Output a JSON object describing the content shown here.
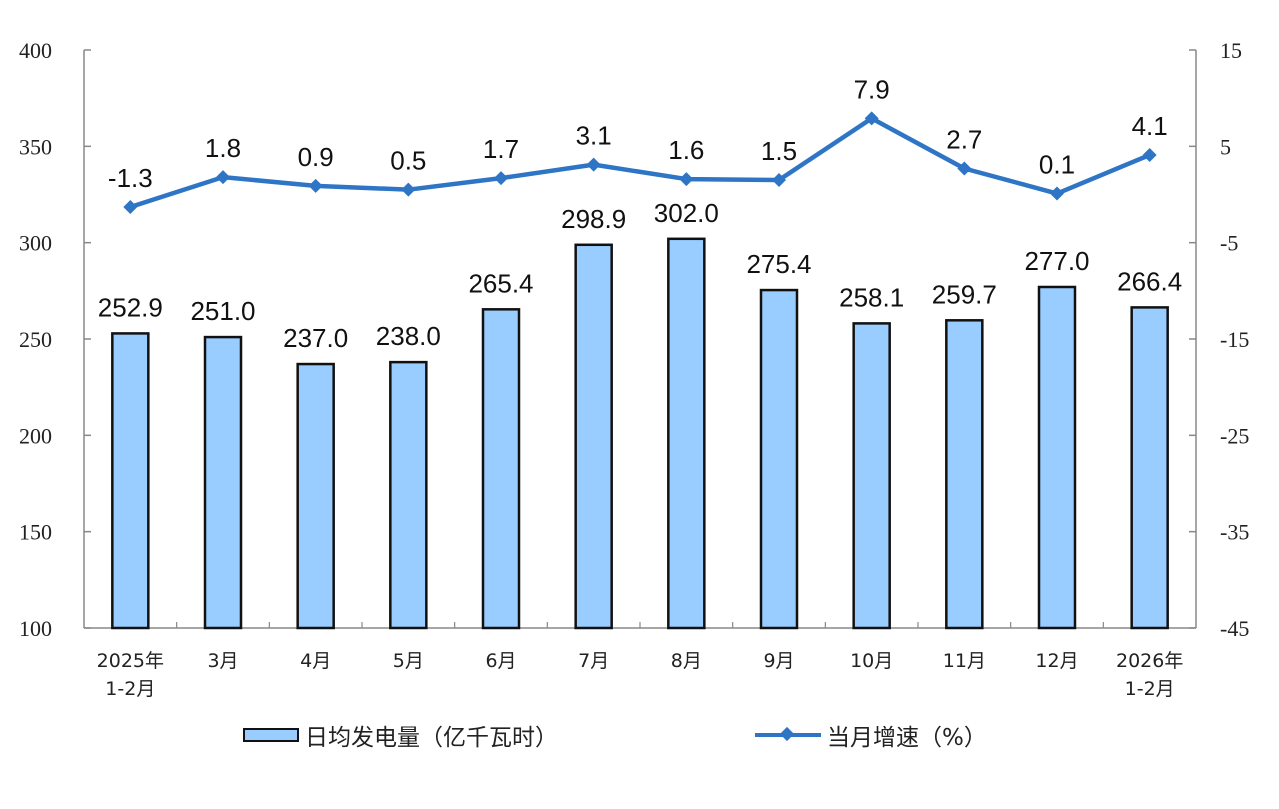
{
  "chart_data": {
    "type": "bar+line",
    "title": "",
    "categories": [
      "2025年\n1-2月",
      "3月",
      "4月",
      "5月",
      "6月",
      "7月",
      "8月",
      "9月",
      "10月",
      "11月",
      "12月",
      "2026年\n1-2月"
    ],
    "category_lines": [
      [
        "2025年",
        "1-2月"
      ],
      [
        "3月"
      ],
      [
        "4月"
      ],
      [
        "5月"
      ],
      [
        "6月"
      ],
      [
        "7月"
      ],
      [
        "8月"
      ],
      [
        "9月"
      ],
      [
        "10月"
      ],
      [
        "11月"
      ],
      [
        "12月"
      ],
      [
        "2026年",
        "1-2月"
      ]
    ],
    "series": [
      {
        "name": "日均发电量（亿千瓦时）",
        "type": "bar",
        "axis": "left",
        "color": "#99ccff",
        "border": "#111111",
        "values": [
          252.9,
          251.0,
          237.0,
          238.0,
          265.4,
          298.9,
          302.0,
          275.4,
          258.1,
          259.7,
          277.0,
          266.4
        ],
        "labels": [
          "252.9",
          "251.0",
          "237.0",
          "238.0",
          "265.4",
          "298.9",
          "302.0",
          "275.4",
          "258.1",
          "259.7",
          "277.0",
          "266.4"
        ]
      },
      {
        "name": "当月增速（%）",
        "type": "line",
        "axis": "right",
        "color": "#2e75c6",
        "marker": "diamond",
        "values": [
          -1.3,
          1.8,
          0.9,
          0.5,
          1.7,
          3.1,
          1.6,
          1.5,
          7.9,
          2.7,
          0.1,
          4.1
        ],
        "labels": [
          "-1.3",
          "1.8",
          "0.9",
          "0.5",
          "1.7",
          "3.1",
          "1.6",
          "1.5",
          "7.9",
          "2.7",
          "0.1",
          "4.1"
        ]
      }
    ],
    "y_left": {
      "min": 100,
      "max": 400,
      "ticks": [
        100,
        150,
        200,
        250,
        300,
        350,
        400
      ]
    },
    "y_right": {
      "min": -45,
      "max": 15,
      "ticks": [
        -45,
        -35,
        -25,
        -15,
        -5,
        5,
        15
      ]
    },
    "xlabel": "",
    "ylabel": "",
    "ylabel_right": "",
    "grid": false,
    "legend_position": "bottom"
  },
  "legend": {
    "bar_label": "日均发电量（亿千瓦时）",
    "line_label": "当月增速（%）"
  }
}
